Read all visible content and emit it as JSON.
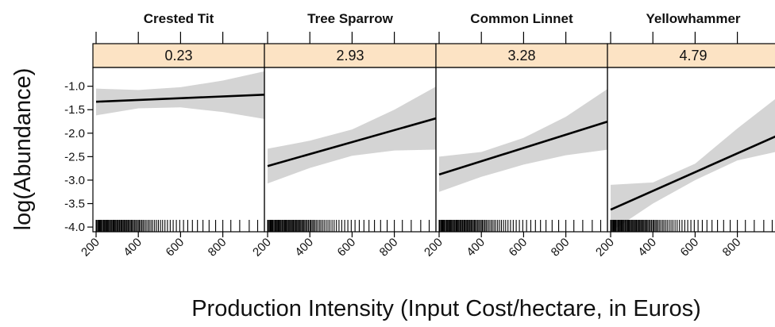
{
  "chart_data": {
    "type": "line",
    "ylabel": "log(Abundance)",
    "xlabel": "Production Intensity (Input Cost/hectare, in Euros)",
    "xlim": [
      185,
      1000
    ],
    "ylim": [
      -4.1,
      -0.6
    ],
    "y_ticks": [
      -1.0,
      -1.5,
      -2.0,
      -2.5,
      -3.0,
      -3.5,
      -4.0
    ],
    "y_tick_labels": [
      "-1.0",
      "-1.5",
      "-2.0",
      "-2.5",
      "-3.0",
      "-3.5",
      "-4.0"
    ],
    "x_ticks": [
      200,
      400,
      600,
      800
    ],
    "x_tick_labels": [
      "200",
      "400",
      "600",
      "800"
    ],
    "rug_x": [
      200,
      203,
      208,
      212,
      215,
      219,
      223,
      226,
      231,
      236,
      240,
      244,
      248,
      251,
      255,
      259,
      263,
      268,
      272,
      276,
      281,
      285,
      289,
      293,
      298,
      302,
      306,
      311,
      316,
      320,
      324,
      329,
      334,
      338,
      343,
      347,
      352,
      357,
      362,
      367,
      372,
      377,
      383,
      388,
      394,
      400,
      405,
      411,
      417,
      423,
      430,
      437,
      445,
      452,
      460,
      468,
      477,
      486,
      495,
      505,
      515,
      526,
      538,
      551,
      565,
      580,
      596,
      614,
      634,
      656,
      680,
      706,
      735,
      766,
      800,
      838,
      880,
      925,
      965
    ],
    "panels": [
      {
        "species": "Crested Tit",
        "strip": "0.23",
        "line": {
          "x": [
            200,
            1000
          ],
          "y": [
            -1.33,
            -1.18
          ]
        },
        "band": {
          "x": [
            200,
            400,
            600,
            800,
            1000
          ],
          "upper": [
            -1.05,
            -1.08,
            -1.02,
            -0.88,
            -0.68
          ],
          "lower": [
            -1.62,
            -1.47,
            -1.45,
            -1.55,
            -1.7
          ]
        }
      },
      {
        "species": "Tree Sparrow",
        "strip": "2.93",
        "line": {
          "x": [
            200,
            1000
          ],
          "y": [
            -2.7,
            -1.68
          ]
        },
        "band": {
          "x": [
            200,
            400,
            600,
            800,
            1000
          ],
          "upper": [
            -2.33,
            -2.16,
            -1.92,
            -1.5,
            -1.0
          ],
          "lower": [
            -3.07,
            -2.74,
            -2.48,
            -2.37,
            -2.35
          ]
        }
      },
      {
        "species": "Common Linnet",
        "strip": "3.28",
        "line": {
          "x": [
            200,
            1000
          ],
          "y": [
            -2.88,
            -1.75
          ]
        },
        "band": {
          "x": [
            200,
            400,
            600,
            800,
            1000
          ],
          "upper": [
            -2.5,
            -2.4,
            -2.1,
            -1.65,
            -1.05
          ],
          "lower": [
            -3.25,
            -2.93,
            -2.67,
            -2.47,
            -2.35
          ]
        }
      },
      {
        "species": "Yellowhammer",
        "strip": "4.79",
        "line": {
          "x": [
            200,
            1000
          ],
          "y": [
            -3.63,
            -2.03
          ]
        },
        "band": {
          "x": [
            200,
            400,
            600,
            800,
            1000
          ],
          "upper": [
            -3.1,
            -3.05,
            -2.65,
            -1.9,
            -1.2
          ],
          "lower": [
            -4.1,
            -3.5,
            -3.0,
            -2.58,
            -2.38
          ]
        }
      }
    ]
  },
  "colors": {
    "strip_fill": "#fce3c4",
    "band_fill": "#d4d4d4",
    "line": "#000000",
    "frame": "#000000"
  }
}
